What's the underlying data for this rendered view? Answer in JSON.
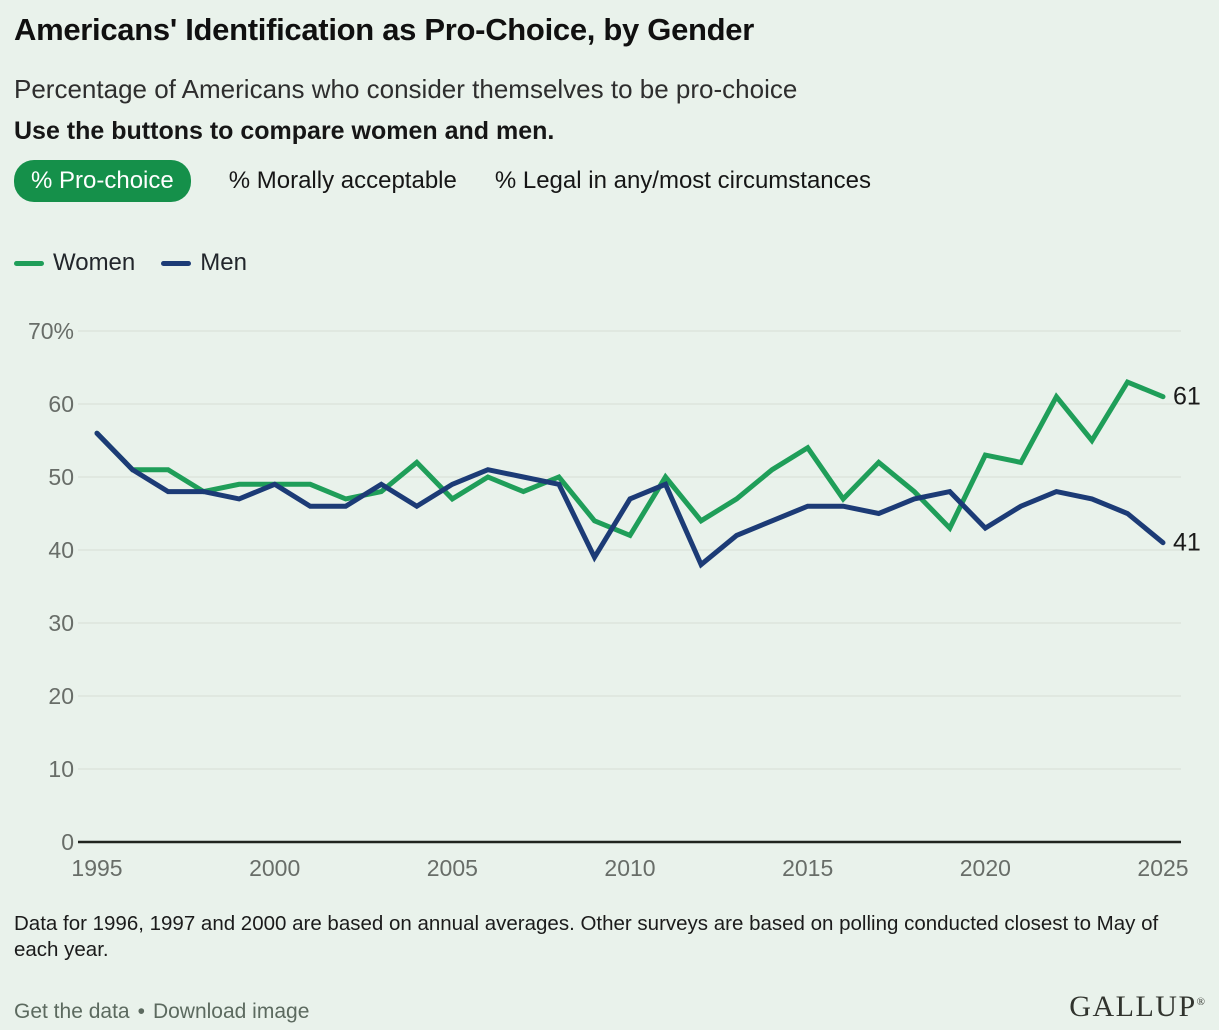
{
  "header": {
    "title": "Americans' Identification as Pro-Choice, by Gender",
    "subtitle": "Percentage of Americans who consider themselves to be pro-choice",
    "instruction": "Use the buttons to compare women and men."
  },
  "buttons": [
    {
      "label": "% Pro-choice",
      "active": true
    },
    {
      "label": "% Morally acceptable",
      "active": false
    },
    {
      "label": "% Legal in any/most circumstances",
      "active": false
    }
  ],
  "legend": [
    {
      "label": "Women",
      "color": "#1f9e59"
    },
    {
      "label": "Men",
      "color": "#1c3b76"
    }
  ],
  "chart_data": {
    "type": "line",
    "x": [
      1995,
      1996,
      1997,
      1998,
      1999,
      2000,
      2001,
      2002,
      2003,
      2004,
      2005,
      2006,
      2007,
      2008,
      2009,
      2010,
      2011,
      2012,
      2013,
      2014,
      2015,
      2016,
      2017,
      2018,
      2019,
      2020,
      2021,
      2022,
      2023,
      2024,
      2025
    ],
    "series": [
      {
        "name": "Women",
        "color": "#1f9e59",
        "end_label": "61",
        "values": [
          56,
          51,
          51,
          48,
          49,
          49,
          49,
          47,
          48,
          52,
          47,
          50,
          48,
          50,
          44,
          42,
          50,
          44,
          47,
          51,
          54,
          47,
          52,
          48,
          43,
          53,
          52,
          61,
          55,
          63,
          61
        ]
      },
      {
        "name": "Men",
        "color": "#1c3b76",
        "end_label": "41",
        "values": [
          56,
          51,
          48,
          48,
          47,
          49,
          46,
          46,
          49,
          46,
          49,
          51,
          50,
          49,
          39,
          47,
          49,
          38,
          42,
          44,
          46,
          46,
          45,
          47,
          48,
          43,
          46,
          48,
          47,
          45,
          41
        ]
      }
    ],
    "ylim": [
      0,
      70
    ],
    "yticks": [
      0,
      10,
      20,
      30,
      40,
      50,
      60,
      70
    ],
    "ytick_labels": [
      "0",
      "10",
      "20",
      "30",
      "40",
      "50",
      "60",
      "70%"
    ],
    "xticks": [
      1995,
      2000,
      2005,
      2010,
      2015,
      2020,
      2025
    ],
    "grid": true,
    "legend_position": "top-left",
    "title": "Americans' Identification as Pro-Choice, by Gender",
    "xlabel": "",
    "ylabel": "% Pro-choice"
  },
  "footnote": "Data for 1996, 1997 and 2000 are based on annual averages. Other surveys are based on polling conducted closest to May of each year.",
  "footer": {
    "links": [
      "Get the data",
      "Download image"
    ],
    "separator": "•",
    "logo": "GALLUP",
    "logo_mark": "®"
  },
  "colors": {
    "background": "#e9f2eb",
    "accent_green_button": "#15904a",
    "women_line": "#1f9e59",
    "men_line": "#1c3b76",
    "gridline": "#d7ddd6",
    "axis_line": "#20241f",
    "tick_text": "#686d68",
    "end_label_text": "#1a1a1a"
  }
}
